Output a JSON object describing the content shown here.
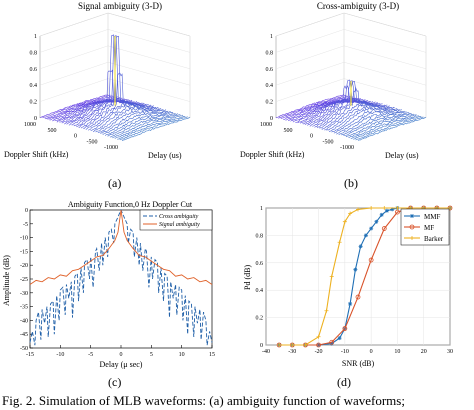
{
  "figure": {
    "caption": "Fig. 2.   Simulation of MLB waveforms: (a) ambiguity function of waveforms;"
  },
  "panel_a": {
    "label": "(a)",
    "title": "Signal ambiguity (3-D)",
    "xlabel": "Delay (us)",
    "ylabel": "Doppler Shift (kHz)",
    "z_ticks": [
      "0",
      "0.2",
      "0.4",
      "0.6",
      "0.8",
      "1"
    ],
    "doppler_ticks": [
      "1000",
      "500",
      "0",
      "-500",
      "-1000"
    ]
  },
  "panel_b": {
    "label": "(b)",
    "title": "Cross-ambiguity (3-D)",
    "xlabel": "Delay (us)",
    "ylabel": "Doppler Shift (kHz)",
    "z_ticks": [
      "0",
      "0.2",
      "0.4",
      "0.6",
      "0.8",
      "1"
    ],
    "doppler_ticks": [
      "1000",
      "500",
      "0",
      "-500",
      "-1000"
    ]
  },
  "panel_c": {
    "label": "(c)"
  },
  "panel_d": {
    "label": "(d)"
  },
  "chart_data": [
    {
      "type": "surface",
      "title": "Signal ambiguity (3-D)",
      "xlabel": "Delay (us)",
      "ylabel": "Doppler Shift (kHz)",
      "zlim": [
        0,
        1
      ],
      "peak": {
        "delay": 0,
        "doppler": 0,
        "value": 1
      }
    },
    {
      "type": "surface",
      "title": "Cross-ambiguity (3-D)",
      "xlabel": "Delay (us)",
      "ylabel": "Doppler Shift (kHz)",
      "zlim": [
        0,
        1
      ],
      "peak": {
        "delay": 0,
        "doppler": 0,
        "value": 0.45
      }
    },
    {
      "type": "line",
      "title": "Ambiguity Function,0 Hz Doppler Cut",
      "xlabel": "Delay (μ sec)",
      "ylabel": "Amplitude (dB)",
      "xlim": [
        -15,
        15
      ],
      "ylim": [
        -50,
        0
      ],
      "x_ticks": [
        "-15",
        "-10",
        "-5",
        "0",
        "5",
        "10",
        "15"
      ],
      "y_ticks": [
        "0",
        "-5",
        "-10",
        "-15",
        "-20",
        "-25",
        "-30",
        "-35",
        "-40",
        "-45",
        "-50"
      ],
      "series": [
        {
          "name": "Cross ambiguity",
          "color": "#1f5fa8",
          "style": "dashed",
          "x": [
            -15,
            -14.6,
            -14.2,
            -14,
            -13.6,
            -13.2,
            -13,
            -12.6,
            -12.2,
            -12,
            -11.6,
            -11.2,
            -11,
            -10.6,
            -10.2,
            -10,
            -9.6,
            -9.2,
            -9,
            -8.6,
            -8.2,
            -8,
            -7.6,
            -7.2,
            -7,
            -6.6,
            -6.2,
            -6,
            -5.6,
            -5.2,
            -5,
            -4.6,
            -4.2,
            -4,
            -3.6,
            -3.2,
            -3,
            -2.6,
            -2.2,
            -2,
            -1.6,
            -1.2,
            -1,
            -0.6,
            -0.3,
            0,
            0.3,
            0.6,
            1,
            1.2,
            1.6,
            2,
            2.2,
            2.6,
            3,
            3.2,
            3.6,
            4,
            4.2,
            4.6,
            5,
            5.2,
            5.6,
            6,
            6.2,
            6.6,
            7,
            7.2,
            7.6,
            8,
            8.2,
            8.6,
            9,
            9.2,
            9.6,
            10,
            10.2,
            10.6,
            11,
            11.2,
            11.6,
            12,
            12.2,
            12.6,
            13,
            13.2,
            13.6,
            14,
            14.2,
            14.6,
            15
          ],
          "y": [
            -48,
            -44,
            -49,
            -40,
            -37,
            -47,
            -36,
            -41,
            -35,
            -46,
            -34,
            -33,
            -45,
            -31,
            -40,
            -29,
            -28,
            -38,
            -27,
            -32,
            -26,
            -39,
            -24,
            -23,
            -33,
            -21,
            -30,
            -19,
            -18,
            -25,
            -17,
            -28,
            -15,
            -14,
            -22,
            -12,
            -20,
            -10,
            -17,
            -8,
            -7,
            -12,
            -5,
            -3,
            -1.5,
            0,
            -1.5,
            -3,
            -5,
            -12,
            -7,
            -8,
            -17,
            -10,
            -20,
            -12,
            -22,
            -14,
            -15,
            -28,
            -17,
            -25,
            -18,
            -19,
            -30,
            -21,
            -33,
            -23,
            -24,
            -39,
            -26,
            -32,
            -27,
            -38,
            -28,
            -29,
            -40,
            -31,
            -45,
            -33,
            -34,
            -46,
            -35,
            -41,
            -36,
            -47,
            -37,
            -40,
            -49,
            -44,
            -48
          ]
        },
        {
          "name": "Signal ambiguity",
          "color": "#e0622a",
          "style": "solid",
          "x": [
            -15,
            -14,
            -13,
            -12,
            -11,
            -10,
            -9,
            -8,
            -7,
            -6,
            -5,
            -4,
            -3,
            -2,
            -1,
            -0.5,
            0,
            0.5,
            1,
            2,
            3,
            4,
            5,
            6,
            7,
            8,
            9,
            10,
            11,
            12,
            13,
            14,
            15
          ],
          "y": [
            -27,
            -25.5,
            -26,
            -24.5,
            -25,
            -23.5,
            -24,
            -22,
            -21.5,
            -20,
            -18.5,
            -17,
            -16.5,
            -14,
            -11,
            -8,
            0,
            -8,
            -11,
            -14,
            -16.5,
            -17,
            -18.5,
            -20,
            -21.5,
            -22,
            -24,
            -23.5,
            -25,
            -24.5,
            -26,
            -25.5,
            -27
          ]
        }
      ]
    },
    {
      "type": "line",
      "title": "",
      "xlabel": "SNR (dB)",
      "ylabel": "Pd (dB)",
      "xlim": [
        -40,
        30
      ],
      "ylim": [
        0,
        1
      ],
      "x_ticks": [
        "-40",
        "-30",
        "-20",
        "-10",
        "0",
        "10",
        "20",
        "30"
      ],
      "y_ticks": [
        "0",
        "0.2",
        "0.4",
        "0.6",
        "0.8",
        "1"
      ],
      "legend": "top-right",
      "series": [
        {
          "name": "MMF",
          "color": "#1f6fb5",
          "marker": "star",
          "x": [
            -35,
            -30,
            -25,
            -20,
            -15,
            -12,
            -10,
            -8,
            -6,
            -4,
            -2,
            0,
            2,
            4,
            6,
            8,
            10,
            15,
            20,
            25,
            30
          ],
          "y": [
            0,
            0,
            0,
            0,
            0.01,
            0.05,
            0.12,
            0.3,
            0.55,
            0.72,
            0.8,
            0.85,
            0.9,
            0.95,
            0.98,
            0.99,
            1,
            1,
            1,
            1,
            1
          ]
        },
        {
          "name": "MF",
          "color": "#d9532a",
          "marker": "circle",
          "x": [
            -35,
            -30,
            -25,
            -20,
            -15,
            -10,
            -5,
            0,
            5,
            10,
            15,
            20,
            25,
            30
          ],
          "y": [
            0,
            0,
            0,
            0,
            0.02,
            0.12,
            0.35,
            0.62,
            0.85,
            0.97,
            1,
            1,
            1,
            1
          ]
        },
        {
          "name": "Barker",
          "color": "#edb120",
          "marker": "plus",
          "x": [
            -35,
            -30,
            -25,
            -20,
            -17,
            -15,
            -12,
            -10,
            -8,
            -5,
            0,
            5,
            10,
            15,
            20,
            25,
            30
          ],
          "y": [
            0,
            0,
            0,
            0.06,
            0.25,
            0.5,
            0.75,
            0.9,
            0.96,
            0.99,
            1,
            1,
            1,
            1,
            1,
            1,
            1
          ]
        }
      ]
    }
  ]
}
